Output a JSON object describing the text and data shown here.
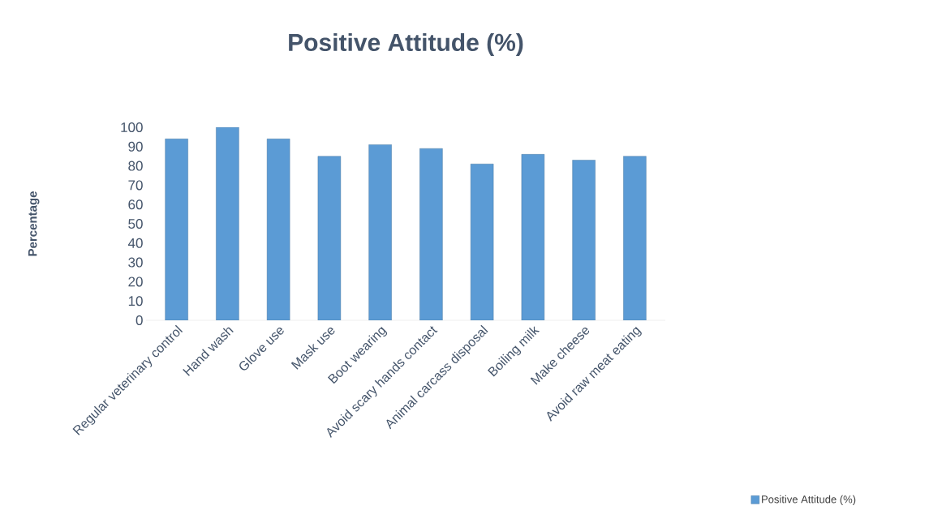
{
  "chart_data": {
    "type": "bar",
    "title": "Positive Attitude (%)",
    "ylabel": "Percentage",
    "categories": [
      "Regular veterinary control",
      "Hand wash",
      "Glove use",
      "Mask use",
      "Boot wearing",
      "Avoid scary hands contact",
      "Animal carcass disposal",
      "Boiling milk",
      "Make cheese",
      "Avoid raw meat eating"
    ],
    "series": [
      {
        "name": "Positive Attitude (%)",
        "color": "#5b9bd5",
        "values": [
          94,
          100,
          94,
          85,
          91,
          89,
          81,
          86,
          83,
          85
        ]
      }
    ],
    "ylim": [
      0,
      100
    ],
    "yticks": [
      0,
      10,
      20,
      30,
      40,
      50,
      60,
      70,
      80,
      90,
      100
    ],
    "legend": "bottom right"
  }
}
